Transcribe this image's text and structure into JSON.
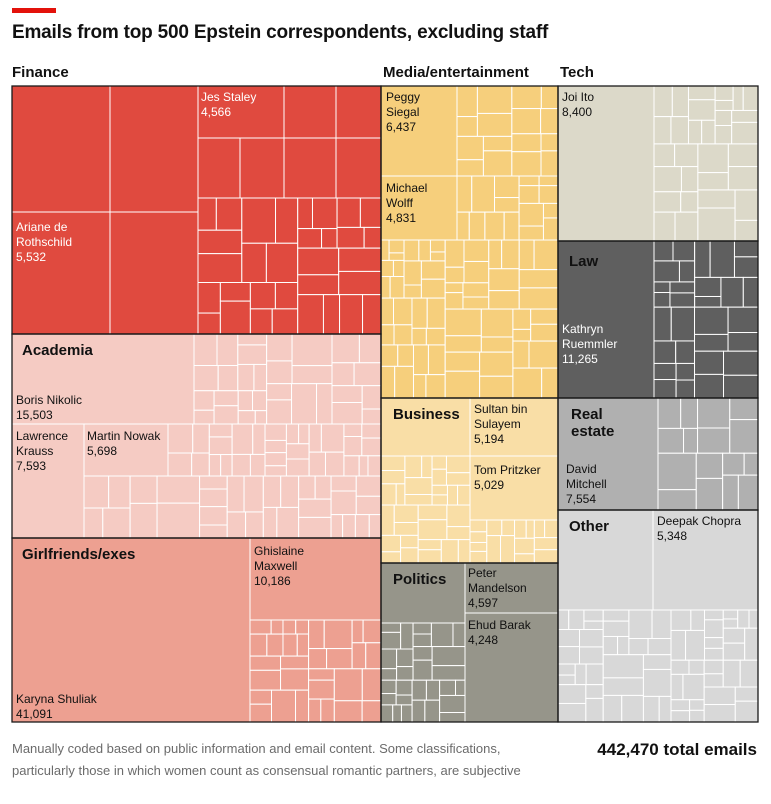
{
  "title": "Emails from top 500 Epstein correspondents, excluding staff",
  "footnote": "Manually coded based on public information and email content. Some classifications, particularly those in which women count as consensual romantic partners, are subjective",
  "total_label": "442,470 total emails",
  "colors": {
    "finance": "#e04a3f",
    "academia": "#f5cbc3",
    "girlfriends": "#eda091",
    "media": "#f6cf7c",
    "business": "#f9dea6",
    "politics": "#96958a",
    "tech": "#dcd9c9",
    "law": "#5f5f5f",
    "real_estate": "#b0b0b0",
    "other": "#d8d8d8",
    "accent": "#e3120b"
  },
  "chart_data": {
    "type": "treemap",
    "title": "Emails from top 500 Epstein correspondents, excluding staff",
    "total": 442470,
    "categories": [
      {
        "key": "finance",
        "name": "Finance",
        "people": [
          {
            "name": "Jes Staley",
            "emails": 4566
          },
          {
            "name": "Ariane de Rothschild",
            "emails": 5532
          }
        ]
      },
      {
        "key": "academia",
        "name": "Academia",
        "people": [
          {
            "name": "Boris Nikolic",
            "emails": 15503
          },
          {
            "name": "Lawrence Krauss",
            "emails": 7593
          },
          {
            "name": "Martin Nowak",
            "emails": 5698
          }
        ]
      },
      {
        "key": "girlfriends",
        "name": "Girlfriends/exes",
        "people": [
          {
            "name": "Ghislaine Maxwell",
            "emails": 10186
          },
          {
            "name": "Karyna Shuliak",
            "emails": 41091
          }
        ]
      },
      {
        "key": "media",
        "name": "Media/entertainment",
        "people": [
          {
            "name": "Peggy Siegal",
            "emails": 6437
          },
          {
            "name": "Michael Wolff",
            "emails": 4831
          }
        ]
      },
      {
        "key": "business",
        "name": "Business",
        "people": [
          {
            "name": "Sultan bin Sulayem",
            "emails": 5194
          },
          {
            "name": "Tom Pritzker",
            "emails": 5029
          }
        ]
      },
      {
        "key": "politics",
        "name": "Politics",
        "people": [
          {
            "name": "Peter Mandelson",
            "emails": 4597
          },
          {
            "name": "Ehud Barak",
            "emails": 4248
          }
        ]
      },
      {
        "key": "tech",
        "name": "Tech",
        "people": [
          {
            "name": "Joi Ito",
            "emails": 8400
          }
        ]
      },
      {
        "key": "law",
        "name": "Law",
        "people": [
          {
            "name": "Kathryn Ruemmler",
            "emails": 11265
          }
        ]
      },
      {
        "key": "real_estate",
        "name": "Real estate",
        "people": [
          {
            "name": "David Mitchell",
            "emails": 7554
          }
        ]
      },
      {
        "key": "other",
        "name": "Other",
        "people": [
          {
            "name": "Deepak Chopra",
            "emails": 5348
          }
        ]
      }
    ],
    "labels": {
      "finance": "Finance",
      "academia": "Academia",
      "girlfriends": "Girlfriends/exes",
      "media": "Media/entertainment",
      "business": "Business",
      "politics": "Politics",
      "tech": "Tech",
      "law": "Law",
      "real_estate_1": "Real",
      "real_estate_2": "estate",
      "other": "Other"
    },
    "people_labels": {
      "jes_staley": {
        "l1": "Jes Staley",
        "v": "4,566"
      },
      "ariane": {
        "l1": "Ariane de",
        "l2": "Rothschild",
        "v": "5,532"
      },
      "boris": {
        "l1": "Boris Nikolic",
        "v": "15,503"
      },
      "krauss": {
        "l1": "Lawrence",
        "l2": "Krauss",
        "v": "7,593"
      },
      "nowak": {
        "l1": "Martin Nowak",
        "v": "5,698"
      },
      "maxwell": {
        "l1": "Ghislaine",
        "l2": "Maxwell",
        "v": "10,186"
      },
      "shuliak": {
        "l1": "Karyna Shuliak",
        "v": "41,091"
      },
      "siegal": {
        "l1": "Peggy",
        "l2": "Siegal",
        "v": "6,437"
      },
      "wolff": {
        "l1": "Michael",
        "l2": "Wolff",
        "v": "4,831"
      },
      "sulayem": {
        "l1": "Sultan bin",
        "l2": "Sulayem",
        "v": "5,194"
      },
      "pritzker": {
        "l1": "Tom Pritzker",
        "v": "5,029"
      },
      "mandelson": {
        "l1": "Peter",
        "l2": "Mandelson",
        "v": "4,597"
      },
      "barak": {
        "l1": "Ehud Barak",
        "v": "4,248"
      },
      "ito": {
        "l1": "Joi Ito",
        "v": "8,400"
      },
      "ruemmler": {
        "l1": "Kathryn",
        "l2": "Ruemmler",
        "v": "11,265"
      },
      "mitchell": {
        "l1": "David",
        "l2": "Mitchell",
        "v": "7,554"
      },
      "chopra": {
        "l1": "Deepak Chopra",
        "v": "5,348"
      }
    }
  }
}
